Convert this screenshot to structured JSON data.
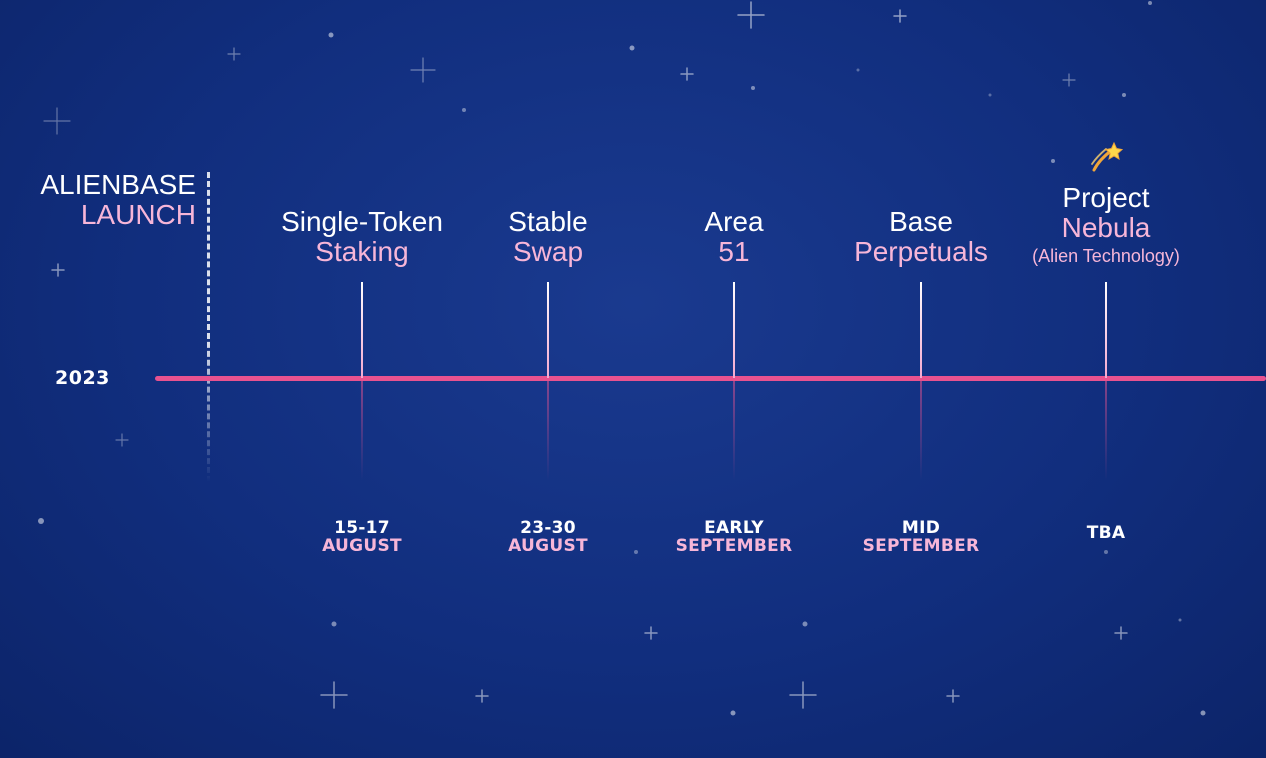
{
  "year": "2023",
  "launch": {
    "line1": "ALIENBASE",
    "line2": "LAUNCH"
  },
  "milestones": [
    {
      "title1": "Single-Token",
      "title2": "Staking",
      "date1": "15-17",
      "date2": "AUGUST"
    },
    {
      "title1": "Stable",
      "title2": "Swap",
      "date1": "23-30",
      "date2": "AUGUST"
    },
    {
      "title1": "Area",
      "title2": "51",
      "date1": "EARLY",
      "date2": "SEPTEMBER"
    },
    {
      "title1": "Base",
      "title2": "Perpetuals",
      "date1": "MID",
      "date2": "SEPTEMBER"
    },
    {
      "title1": "Project",
      "title2": "Nebula",
      "subtitle": "(Alien Technology)",
      "date1": "TBA",
      "date2": "",
      "icon": "shooting-star-icon"
    }
  ],
  "colors": {
    "accent": "#e8528f",
    "pink_text": "#f7b6d8",
    "background": "#112e7e"
  }
}
